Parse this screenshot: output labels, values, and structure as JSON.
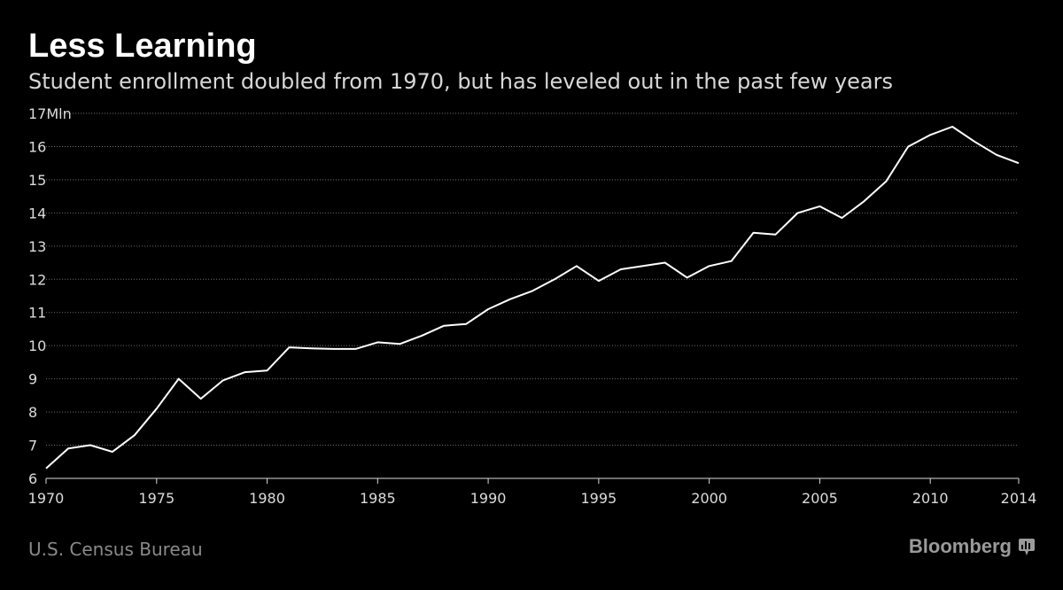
{
  "chart_data": {
    "type": "line",
    "title": "Less Learning",
    "subtitle": "Student enrollment doubled from 1970, but has leveled out in the past few years",
    "xlabel": "",
    "ylabel": "",
    "y_unit_label": "17Mln",
    "xlim": [
      1970,
      2014
    ],
    "ylim": [
      6,
      17
    ],
    "x_ticks": [
      1970,
      1975,
      1980,
      1985,
      1990,
      1995,
      2000,
      2005,
      2010,
      2014
    ],
    "y_ticks": [
      6,
      7,
      8,
      9,
      10,
      11,
      12,
      13,
      14,
      15,
      16,
      17
    ],
    "y_tick_labels": [
      "6",
      "7",
      "8",
      "9",
      "10",
      "11",
      "12",
      "13",
      "14",
      "15",
      "16",
      "17Mln"
    ],
    "grid": "horizontal-dotted",
    "line_color": "#ffffff",
    "series": [
      {
        "x": [
          1970,
          1971,
          1972,
          1973,
          1974,
          1975,
          1976,
          1977,
          1978,
          1979,
          1980,
          1981,
          1982,
          1983,
          1984,
          1985,
          1986,
          1987,
          1988,
          1989,
          1990,
          1991,
          1992,
          1993,
          1994,
          1995,
          1996,
          1997,
          1998,
          1999,
          2000,
          2001,
          2002,
          2003,
          2004,
          2005,
          2006,
          2007,
          2008,
          2009,
          2010,
          2011,
          2012,
          2013,
          2014
        ],
        "values": [
          6.3,
          6.9,
          7.0,
          6.8,
          7.3,
          8.1,
          9.0,
          8.4,
          8.95,
          9.2,
          9.25,
          9.95,
          9.92,
          9.9,
          9.9,
          10.1,
          10.05,
          10.3,
          10.6,
          10.65,
          11.1,
          11.4,
          11.65,
          12.0,
          12.4,
          11.95,
          12.3,
          12.4,
          12.5,
          12.05,
          12.4,
          12.55,
          13.4,
          13.35,
          14.0,
          14.2,
          13.85,
          14.35,
          14.95,
          16.0,
          16.35,
          16.6,
          16.15,
          15.75,
          15.5
        ]
      }
    ]
  },
  "footer": {
    "source": "U.S. Census Bureau",
    "brand": "Bloomberg"
  },
  "colors": {
    "background": "#000000",
    "grid": "#6e6e6e",
    "text": "#dcdcdc",
    "muted": "#8a8a8a"
  }
}
